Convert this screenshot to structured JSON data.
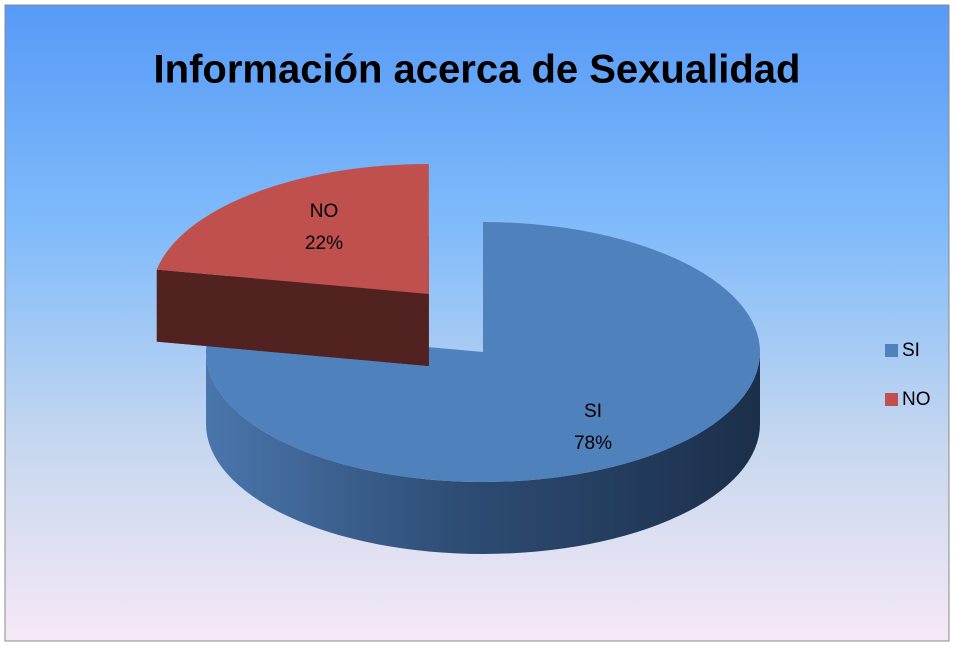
{
  "chart_data": {
    "type": "pie",
    "title": "Información acerca de Sexualidad",
    "categories": [
      "SI",
      "NO"
    ],
    "values": [
      78,
      22
    ],
    "value_labels": [
      "78%",
      "22%"
    ],
    "colors": [
      "#4f81bd",
      "#c0504d"
    ],
    "legend": "right",
    "three_d": true
  }
}
